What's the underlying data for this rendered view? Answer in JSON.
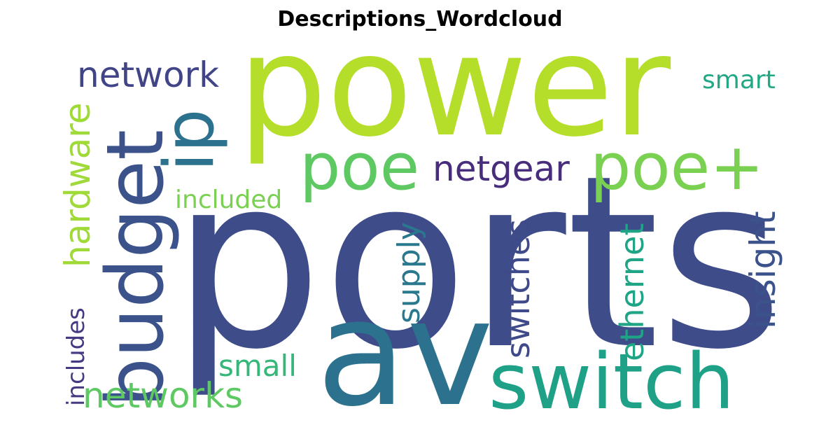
{
  "title": "Descriptions_Wordcloud",
  "words": {
    "power": {
      "text": "power",
      "color": "#b5de2b"
    },
    "ports": {
      "text": "ports",
      "color": "#3e4c8a"
    },
    "av": {
      "text": "av",
      "color": "#2c728e"
    },
    "switch": {
      "text": "switch",
      "color": "#1fa187"
    },
    "budget": {
      "text": "budget",
      "color": "#3b528b"
    },
    "ip": {
      "text": "ip",
      "color": "#2c728e"
    },
    "poe": {
      "text": "poe",
      "color": "#5ec962"
    },
    "poe_plus": {
      "text": "poe+",
      "color": "#7ad151"
    },
    "network": {
      "text": "network",
      "color": "#414487"
    },
    "netgear": {
      "text": "netgear",
      "color": "#472d7b"
    },
    "smart": {
      "text": "smart",
      "color": "#22a884"
    },
    "hardware": {
      "text": "hardware",
      "color": "#a0da39"
    },
    "included": {
      "text": "included",
      "color": "#7ad151"
    },
    "supply": {
      "text": "supply",
      "color": "#2a788e"
    },
    "switches": {
      "text": "switches",
      "color": "#3e4a89"
    },
    "ethernet": {
      "text": "ethernet",
      "color": "#20a486"
    },
    "insight": {
      "text": "insight",
      "color": "#3b528b"
    },
    "includes": {
      "text": "includes",
      "color": "#443983"
    },
    "small": {
      "text": "small",
      "color": "#35b779"
    },
    "networks": {
      "text": "networks",
      "color": "#5ec962"
    }
  }
}
